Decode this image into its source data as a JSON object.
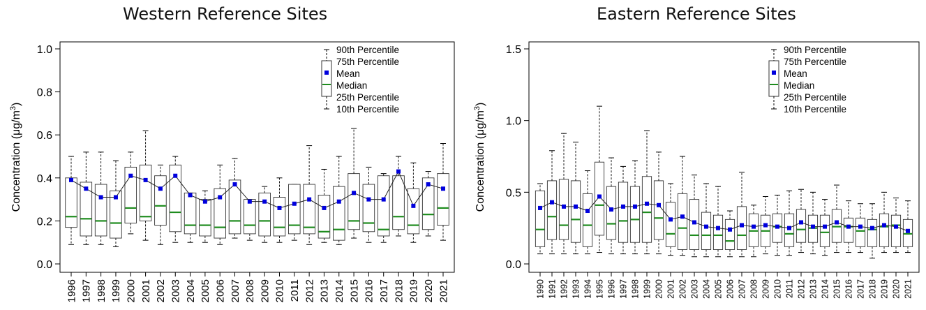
{
  "chart_data": [
    {
      "type": "box",
      "title": "Western Reference Sites",
      "ylabel": "Concentration (μg/m³)",
      "ylabel_main": "Concentration (μg/m",
      "ylabel_sup": "3",
      "ylabel_close": ")",
      "ylim": [
        0,
        1.0
      ],
      "yticks": [
        0.0,
        0.2,
        0.4,
        0.6,
        0.8,
        1.0
      ],
      "ytick_labels": [
        "0.0",
        "0.2",
        "0.4",
        "0.6",
        "0.8",
        "1.0"
      ],
      "legend_position": "top-right",
      "categories": [
        "1996",
        "1997",
        "1998",
        "1999",
        "2000",
        "2001",
        "2002",
        "2003",
        "2004",
        "2005",
        "2006",
        "2007",
        "2008",
        "2009",
        "2010",
        "2011",
        "2012",
        "2013",
        "2014",
        "2015",
        "2016",
        "2017",
        "2018",
        "2019",
        "2020",
        "2021"
      ],
      "p10": [
        0.09,
        0.09,
        0.09,
        0.08,
        0.14,
        0.11,
        0.09,
        0.1,
        0.1,
        0.1,
        0.09,
        0.12,
        0.11,
        0.1,
        0.1,
        0.11,
        0.09,
        0.1,
        0.09,
        0.12,
        0.1,
        0.1,
        0.13,
        0.1,
        0.13,
        0.11
      ],
      "p25": [
        0.17,
        0.13,
        0.13,
        0.12,
        0.19,
        0.2,
        0.18,
        0.15,
        0.14,
        0.13,
        0.12,
        0.14,
        0.14,
        0.13,
        0.13,
        0.14,
        0.14,
        0.12,
        0.11,
        0.16,
        0.15,
        0.13,
        0.16,
        0.14,
        0.16,
        0.18
      ],
      "median": [
        0.22,
        0.21,
        0.2,
        0.19,
        0.26,
        0.22,
        0.27,
        0.24,
        0.18,
        0.18,
        0.17,
        0.2,
        0.18,
        0.2,
        0.17,
        0.18,
        0.17,
        0.15,
        0.16,
        0.2,
        0.19,
        0.16,
        0.22,
        0.18,
        0.23,
        0.26
      ],
      "mean": [
        0.39,
        0.35,
        0.31,
        0.31,
        0.41,
        0.39,
        0.35,
        0.41,
        0.32,
        0.29,
        0.31,
        0.37,
        0.29,
        0.29,
        0.26,
        0.28,
        0.3,
        0.26,
        0.29,
        0.33,
        0.3,
        0.3,
        0.43,
        0.27,
        0.37,
        0.35
      ],
      "p75": [
        0.4,
        0.38,
        0.37,
        0.34,
        0.45,
        0.46,
        0.41,
        0.46,
        0.33,
        0.3,
        0.35,
        0.39,
        0.3,
        0.33,
        0.31,
        0.37,
        0.37,
        0.32,
        0.36,
        0.42,
        0.37,
        0.41,
        0.41,
        0.35,
        0.4,
        0.42
      ],
      "p90": [
        0.5,
        0.52,
        0.52,
        0.48,
        0.52,
        0.62,
        0.46,
        0.5,
        0.33,
        0.34,
        0.46,
        0.49,
        0.3,
        0.36,
        0.4,
        0.37,
        0.55,
        0.44,
        0.5,
        0.63,
        0.45,
        0.42,
        0.5,
        0.47,
        0.43,
        0.56
      ],
      "legend": {
        "p90": "90th Percentile",
        "p75": "75th Percentile",
        "mean": "Mean",
        "median": "Median",
        "p25": "25th Percentile",
        "p10": "10th Percentile"
      },
      "colors": {
        "median": "#1e8c1e",
        "mean": "#0000dd",
        "box": "#333333",
        "whisker": "#000000"
      }
    },
    {
      "type": "box",
      "title": "Eastern Reference Sites",
      "ylabel": "Concentration (μg/m³)",
      "ylabel_main": "Concentration (μg/m",
      "ylabel_sup": "3",
      "ylabel_close": ")",
      "ylim": [
        0,
        1.5
      ],
      "yticks": [
        0.0,
        0.5,
        1.0,
        1.5
      ],
      "ytick_labels": [
        "0.0",
        "0.5",
        "1.0",
        "1.5"
      ],
      "legend_position": "top-right",
      "categories": [
        "1990",
        "1991",
        "1992",
        "1993",
        "1994",
        "1995",
        "1996",
        "1997",
        "1998",
        "1999",
        "2000",
        "2001",
        "2002",
        "2003",
        "2004",
        "2005",
        "2006",
        "2007",
        "2008",
        "2009",
        "2010",
        "2011",
        "2012",
        "2013",
        "2014",
        "2015",
        "2016",
        "2017",
        "2018",
        "2019",
        "2020",
        "2021"
      ],
      "p10": [
        0.07,
        0.07,
        0.07,
        0.07,
        0.07,
        0.08,
        0.07,
        0.07,
        0.07,
        0.07,
        0.07,
        0.06,
        0.06,
        0.05,
        0.05,
        0.05,
        0.05,
        0.05,
        0.05,
        0.07,
        0.06,
        0.06,
        0.08,
        0.07,
        0.06,
        0.08,
        0.08,
        0.08,
        0.04,
        0.08,
        0.08,
        0.08
      ],
      "p25": [
        0.12,
        0.17,
        0.17,
        0.15,
        0.12,
        0.2,
        0.17,
        0.15,
        0.15,
        0.15,
        0.17,
        0.12,
        0.1,
        0.1,
        0.1,
        0.1,
        0.1,
        0.1,
        0.12,
        0.12,
        0.15,
        0.12,
        0.15,
        0.15,
        0.12,
        0.15,
        0.15,
        0.12,
        0.12,
        0.12,
        0.12,
        0.12
      ],
      "median": [
        0.24,
        0.33,
        0.27,
        0.31,
        0.27,
        0.41,
        0.28,
        0.3,
        0.31,
        0.36,
        0.32,
        0.21,
        0.25,
        0.2,
        0.2,
        0.2,
        0.16,
        0.2,
        0.23,
        0.23,
        0.26,
        0.21,
        0.24,
        0.25,
        0.22,
        0.26,
        0.26,
        0.23,
        0.24,
        0.26,
        0.27,
        0.21
      ],
      "mean": [
        0.39,
        0.43,
        0.4,
        0.4,
        0.37,
        0.47,
        0.38,
        0.4,
        0.4,
        0.42,
        0.41,
        0.31,
        0.33,
        0.29,
        0.26,
        0.25,
        0.24,
        0.27,
        0.26,
        0.27,
        0.26,
        0.25,
        0.29,
        0.26,
        0.26,
        0.29,
        0.26,
        0.26,
        0.25,
        0.27,
        0.26,
        0.23
      ],
      "p75": [
        0.51,
        0.58,
        0.59,
        0.58,
        0.49,
        0.71,
        0.54,
        0.57,
        0.54,
        0.61,
        0.58,
        0.43,
        0.49,
        0.45,
        0.36,
        0.34,
        0.31,
        0.4,
        0.35,
        0.34,
        0.35,
        0.35,
        0.38,
        0.34,
        0.34,
        0.38,
        0.32,
        0.32,
        0.31,
        0.35,
        0.34,
        0.31
      ],
      "p90": [
        0.56,
        0.79,
        0.91,
        0.85,
        0.65,
        1.1,
        0.74,
        0.68,
        0.72,
        0.93,
        0.78,
        0.56,
        0.75,
        0.62,
        0.56,
        0.54,
        0.37,
        0.64,
        0.41,
        0.47,
        0.48,
        0.51,
        0.52,
        0.5,
        0.45,
        0.55,
        0.44,
        0.42,
        0.42,
        0.5,
        0.46,
        0.44
      ],
      "legend": {
        "p90": "90th Percentile",
        "p75": "75th Percentile",
        "mean": "Mean",
        "median": "Median",
        "p25": "25th Percentile",
        "p10": "10th Percentile"
      },
      "colors": {
        "median": "#1e8c1e",
        "mean": "#0000dd",
        "box": "#333333",
        "whisker": "#000000"
      }
    }
  ]
}
